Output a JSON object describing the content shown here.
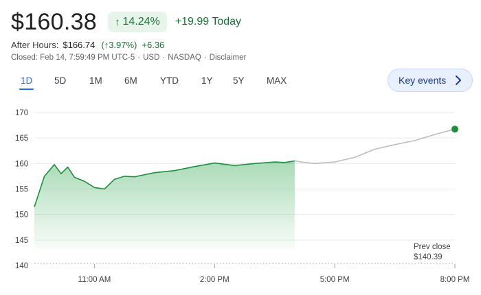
{
  "quote": {
    "price": "$160.38",
    "change_percent": "14.24%",
    "change_today": "+19.99 Today"
  },
  "after_hours": {
    "label": "After Hours:",
    "price": "$166.74",
    "change_percent": "(↑3.97%)",
    "change_abs": "+6.36"
  },
  "closed_info": {
    "closed": "Closed: Feb 14, 7:59:49 PM UTC-5",
    "currency": "USD",
    "exchange": "NASDAQ",
    "disclaimer": "Disclaimer"
  },
  "ranges": [
    "1D",
    "5D",
    "1M",
    "6M",
    "YTD",
    "1Y",
    "5Y",
    "MAX"
  ],
  "selected_range": "1D",
  "key_events_label": "Key events",
  "prev_close": {
    "label": "Prev close",
    "value": "$140.39"
  },
  "colors": {
    "up": "#137333",
    "up_bg": "#e6f4ea",
    "line_regular": "#1e8e3e",
    "line_after": "#bdbdbd",
    "accent": "#1a73e8"
  },
  "icons": {
    "up_arrow": "arrow-up-icon",
    "chevron": "chevron-right-icon"
  },
  "chart_data": {
    "type": "line",
    "x_ticks": [
      "11:00 AM",
      "2:00 PM",
      "5:00 PM",
      "8:00 PM"
    ],
    "y_ticks": [
      140,
      145,
      150,
      155,
      160,
      165,
      170
    ],
    "ylim": [
      140,
      170
    ],
    "grid": true,
    "baseline": 140.39,
    "series": [
      {
        "session": "regular",
        "x": [
          "9:30 AM",
          "9:35 AM",
          "9:45 AM",
          "10:00 AM",
          "10:10 AM",
          "10:20 AM",
          "10:30 AM",
          "10:45 AM",
          "11:00 AM",
          "11:15 AM",
          "11:30 AM",
          "11:45 AM",
          "12:00 PM",
          "12:30 PM",
          "1:00 PM",
          "1:30 PM",
          "2:00 PM",
          "2:30 PM",
          "3:00 PM",
          "3:30 PM",
          "3:45 PM",
          "4:00 PM"
        ],
        "values": [
          151.5,
          153.5,
          157.5,
          159.8,
          158.0,
          159.3,
          157.3,
          156.5,
          155.3,
          155.0,
          156.9,
          157.5,
          157.4,
          158.2,
          158.6,
          159.4,
          160.1,
          159.6,
          160.0,
          160.3,
          160.2,
          160.5
        ]
      },
      {
        "session": "after-hours",
        "x": [
          "4:00 PM",
          "4:15 PM",
          "4:30 PM",
          "5:00 PM",
          "5:30 PM",
          "6:00 PM",
          "6:30 PM",
          "7:00 PM",
          "7:30 PM",
          "8:00 PM"
        ],
        "values": [
          160.5,
          160.2,
          160.0,
          160.3,
          161.2,
          162.8,
          163.7,
          164.5,
          165.7,
          166.74
        ]
      }
    ]
  }
}
